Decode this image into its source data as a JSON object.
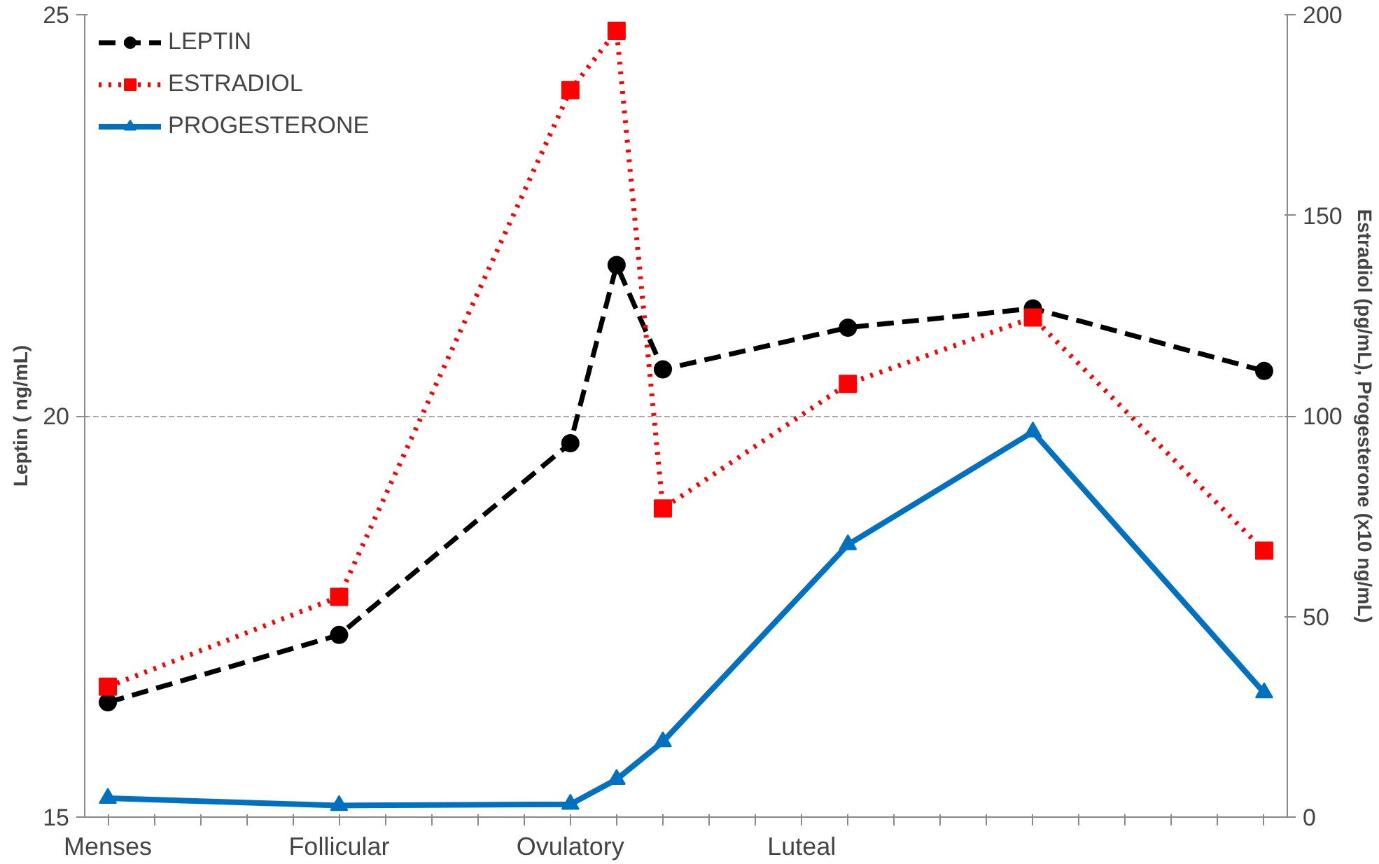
{
  "chart_data": {
    "type": "line",
    "ylabel": "Leptin ( ng/mL)",
    "y2label": "Estradiol (pg/mL), Progesterone (x10 ng/mL)",
    "categories": [
      "Menses",
      null,
      null,
      null,
      null,
      "Follicular",
      null,
      null,
      null,
      null,
      "Ovulatory",
      null,
      null,
      null,
      null,
      "Luteal",
      null,
      null,
      null,
      null,
      null,
      null,
      null,
      null,
      null,
      null
    ],
    "ylim": [
      15,
      25
    ],
    "yticks": [
      15,
      20,
      25
    ],
    "y2lim": [
      0,
      200
    ],
    "y2ticks": [
      0,
      50,
      100,
      150,
      200
    ],
    "grid": "y",
    "legend": "top left",
    "series": [
      {
        "name": "LEPTIN",
        "color": "#000000",
        "marker": "circle",
        "line_style": "dashed",
        "values": [
          16.43,
          null,
          null,
          null,
          null,
          17.27,
          null,
          null,
          null,
          null,
          19.66,
          21.88,
          20.58,
          null,
          null,
          null,
          21.1,
          null,
          null,
          null,
          21.34,
          null,
          null,
          null,
          null,
          20.56
        ]
      },
      {
        "name": "ESTRADIOL",
        "color": "#ff0000",
        "marker": "square",
        "line_style": "dotted",
        "axis": "y2",
        "values": [
          32.5,
          null,
          null,
          null,
          null,
          54.9,
          null,
          null,
          null,
          null,
          181.2,
          196,
          76.9,
          null,
          null,
          null,
          108,
          null,
          null,
          null,
          124.5,
          null,
          null,
          null,
          null,
          66.4
        ]
      },
      {
        "name": "PROGESTERONE",
        "color": "#0070c0",
        "marker": "triangle",
        "line_style": "solid",
        "axis": "y2",
        "values": [
          4.7,
          null,
          null,
          null,
          null,
          2.9,
          null,
          null,
          null,
          null,
          3.2,
          9.4,
          18.8,
          null,
          null,
          null,
          67.9,
          null,
          null,
          null,
          96,
          null,
          null,
          null,
          null,
          31
        ]
      }
    ]
  }
}
